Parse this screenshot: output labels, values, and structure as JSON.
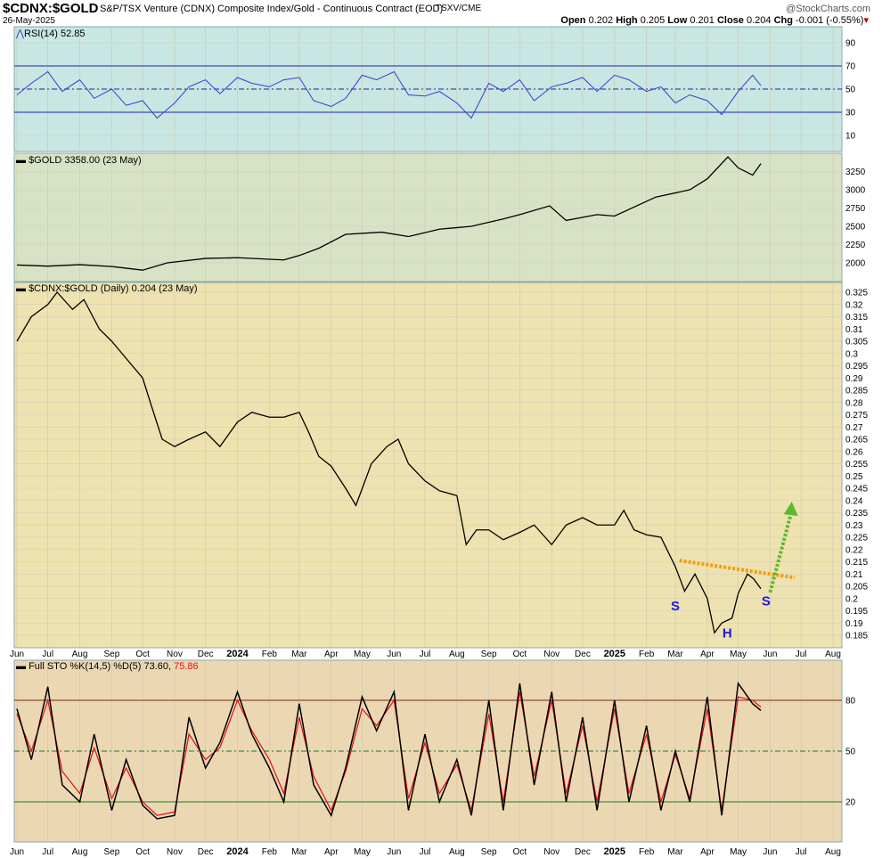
{
  "header": {
    "symbol": "$CDNX:$GOLD",
    "description": "S&P/TSX Venture (CDNX) Composite Index/Gold - Continuous Contract (EOD)",
    "exchange": "TSXV/CME",
    "date": "26-May-2025",
    "watermark": "@StockCharts.com",
    "ohlc": [
      {
        "k": "Open",
        "v": "0.202"
      },
      {
        "k": "High",
        "v": "0.205"
      },
      {
        "k": "Low",
        "v": "0.201"
      },
      {
        "k": "Close",
        "v": "0.204"
      },
      {
        "k": "Chg",
        "v": "-0.001 (-0.55%)"
      }
    ]
  },
  "x_ticks": [
    "Jun",
    "Jul",
    "Aug",
    "Sep",
    "Oct",
    "Nov",
    "Dec",
    "2024",
    "Feb",
    "Mar",
    "Apr",
    "May",
    "Jun",
    "Jul",
    "Aug",
    "Sep",
    "Oct",
    "Nov",
    "Dec",
    "2025",
    "Feb",
    "Mar",
    "Apr",
    "May",
    "Jun",
    "Jul",
    "Aug"
  ],
  "x_tick_dates": [
    "2023-06-01",
    "2023-07-01",
    "2023-08-01",
    "2023-09-01",
    "2023-10-01",
    "2023-11-01",
    "2023-12-01",
    "2024-01-01",
    "2024-02-01",
    "2024-03-01",
    "2024-04-01",
    "2024-05-01",
    "2024-06-01",
    "2024-07-01",
    "2024-08-01",
    "2024-09-01",
    "2024-10-01",
    "2024-11-01",
    "2024-12-01",
    "2025-01-01",
    "2025-02-01",
    "2025-03-01",
    "2025-04-01",
    "2025-05-01",
    "2025-06-01",
    "2025-07-01",
    "2025-08-01"
  ],
  "colors": {
    "rsi_bg": "#c8e6e2",
    "gold_bg": "#d8e3c6",
    "main_bg": "#eee2b0",
    "sto_bg": "#ecd7b3",
    "rsi_line": "#3b3bd0",
    "sto_k": "#000000",
    "sto_d": "#e01010",
    "trendline": "#f39c12",
    "arrow": "#5cb82e",
    "label": "#1a1ae0"
  },
  "chart_data": [
    {
      "type": "line",
      "legend": "RSI(14) 52.85",
      "yticks": [
        90,
        70,
        50,
        30,
        10
      ],
      "ylim": [
        0,
        100
      ],
      "overbought": 70,
      "oversold": 30,
      "x": [
        "2023-06-01",
        "2023-06-15",
        "2023-07-01",
        "2023-07-15",
        "2023-08-01",
        "2023-08-15",
        "2023-09-01",
        "2023-09-15",
        "2023-10-01",
        "2023-10-15",
        "2023-11-01",
        "2023-11-15",
        "2023-12-01",
        "2023-12-15",
        "2024-01-01",
        "2024-01-15",
        "2024-02-01",
        "2024-02-15",
        "2024-03-01",
        "2024-03-15",
        "2024-04-01",
        "2024-04-15",
        "2024-05-01",
        "2024-05-15",
        "2024-06-01",
        "2024-06-15",
        "2024-07-01",
        "2024-07-15",
        "2024-08-01",
        "2024-08-15",
        "2024-09-01",
        "2024-09-15",
        "2024-10-01",
        "2024-10-15",
        "2024-11-01",
        "2024-11-15",
        "2024-12-01",
        "2024-12-15",
        "2025-01-01",
        "2025-01-15",
        "2025-02-01",
        "2025-02-15",
        "2025-03-01",
        "2025-03-15",
        "2025-04-01",
        "2025-04-15",
        "2025-05-01",
        "2025-05-15",
        "2025-05-23"
      ],
      "values": [
        45,
        55,
        65,
        48,
        58,
        42,
        50,
        36,
        40,
        25,
        38,
        52,
        58,
        46,
        60,
        55,
        52,
        58,
        60,
        40,
        35,
        42,
        62,
        58,
        65,
        45,
        44,
        48,
        38,
        25,
        55,
        48,
        58,
        40,
        52,
        55,
        60,
        48,
        62,
        58,
        48,
        52,
        38,
        45,
        40,
        28,
        48,
        62,
        53
      ]
    },
    {
      "type": "line",
      "legend": "$GOLD 3358.00 (23 May)",
      "yticks": [
        3250,
        3000,
        2750,
        2500,
        2250,
        2000
      ],
      "x": [
        "2023-06-01",
        "2023-07-01",
        "2023-08-01",
        "2023-09-01",
        "2023-10-01",
        "2023-10-25",
        "2023-12-01",
        "2024-01-01",
        "2024-02-15",
        "2024-03-01",
        "2024-03-20",
        "2024-04-15",
        "2024-05-20",
        "2024-06-15",
        "2024-07-15",
        "2024-08-15",
        "2024-09-15",
        "2024-10-01",
        "2024-10-30",
        "2024-11-15",
        "2024-12-15",
        "2025-01-01",
        "2025-02-10",
        "2025-03-15",
        "2025-04-01",
        "2025-04-21",
        "2025-05-01",
        "2025-05-15",
        "2025-05-23"
      ],
      "values": [
        1970,
        1955,
        1975,
        1950,
        1900,
        2000,
        2060,
        2070,
        2040,
        2100,
        2200,
        2390,
        2420,
        2360,
        2460,
        2500,
        2600,
        2660,
        2780,
        2580,
        2660,
        2640,
        2900,
        3000,
        3150,
        3450,
        3300,
        3200,
        3358
      ]
    },
    {
      "type": "line",
      "legend": "$CDNX:$GOLD (Daily) 0.204 (23 May)",
      "yticks": [
        0.325,
        0.32,
        0.315,
        0.31,
        0.305,
        0.3,
        0.295,
        0.29,
        0.285,
        0.28,
        0.275,
        0.27,
        0.265,
        0.26,
        0.255,
        0.25,
        0.245,
        0.24,
        0.235,
        0.23,
        0.225,
        0.22,
        0.215,
        0.21,
        0.205,
        0.2,
        0.195,
        0.19,
        0.185
      ],
      "x": [
        "2023-06-01",
        "2023-06-15",
        "2023-07-01",
        "2023-07-10",
        "2023-07-25",
        "2023-08-05",
        "2023-08-20",
        "2023-09-01",
        "2023-09-15",
        "2023-10-01",
        "2023-10-10",
        "2023-10-20",
        "2023-11-01",
        "2023-11-15",
        "2023-12-01",
        "2023-12-15",
        "2024-01-01",
        "2024-01-15",
        "2024-02-01",
        "2024-02-15",
        "2024-03-01",
        "2024-03-10",
        "2024-03-20",
        "2024-04-01",
        "2024-04-15",
        "2024-04-25",
        "2024-05-10",
        "2024-05-25",
        "2024-06-05",
        "2024-06-15",
        "2024-07-01",
        "2024-07-15",
        "2024-08-01",
        "2024-08-10",
        "2024-08-20",
        "2024-09-01",
        "2024-09-15",
        "2024-10-01",
        "2024-10-15",
        "2024-11-01",
        "2024-11-15",
        "2024-12-01",
        "2024-12-15",
        "2025-01-01",
        "2025-01-10",
        "2025-01-20",
        "2025-02-01",
        "2025-02-15",
        "2025-03-01",
        "2025-03-10",
        "2025-03-20",
        "2025-04-01",
        "2025-04-08",
        "2025-04-15",
        "2025-04-25",
        "2025-05-01",
        "2025-05-10",
        "2025-05-16",
        "2025-05-23"
      ],
      "values": [
        0.305,
        0.315,
        0.32,
        0.325,
        0.318,
        0.322,
        0.31,
        0.305,
        0.298,
        0.29,
        0.278,
        0.265,
        0.262,
        0.265,
        0.268,
        0.262,
        0.272,
        0.276,
        0.274,
        0.274,
        0.276,
        0.268,
        0.258,
        0.254,
        0.245,
        0.238,
        0.255,
        0.262,
        0.265,
        0.255,
        0.248,
        0.244,
        0.242,
        0.222,
        0.228,
        0.228,
        0.224,
        0.227,
        0.23,
        0.222,
        0.23,
        0.233,
        0.23,
        0.23,
        0.236,
        0.228,
        0.226,
        0.225,
        0.213,
        0.203,
        0.21,
        0.2,
        0.186,
        0.19,
        0.192,
        0.202,
        0.21,
        0.208,
        0.204
      ],
      "annotations": [
        {
          "text": "S",
          "x": "2025-03-01",
          "y": 0.197
        },
        {
          "text": "H",
          "x": "2025-04-20",
          "y": 0.186
        },
        {
          "text": "S",
          "x": "2025-05-28",
          "y": 0.199
        }
      ],
      "trendline": {
        "from": [
          "2025-03-05",
          0.2155
        ],
        "to": [
          "2025-06-25",
          0.2085
        ]
      },
      "arrow": {
        "from": [
          "2025-06-01",
          0.2025
        ],
        "to": [
          "2025-06-22",
          0.2395
        ]
      }
    },
    {
      "type": "line",
      "legend": "Full STO %K(14,5) %D(5) 73.60,",
      "legend_d": "75.86",
      "yticks": [
        80,
        50,
        20
      ],
      "x": [
        "2023-06-01",
        "2023-06-15",
        "2023-07-01",
        "2023-07-15",
        "2023-08-01",
        "2023-08-15",
        "2023-09-01",
        "2023-09-15",
        "2023-10-01",
        "2023-10-15",
        "2023-11-01",
        "2023-11-15",
        "2023-12-01",
        "2023-12-15",
        "2024-01-01",
        "2024-01-15",
        "2024-02-01",
        "2024-02-15",
        "2024-03-01",
        "2024-03-15",
        "2024-04-01",
        "2024-04-15",
        "2024-05-01",
        "2024-05-15",
        "2024-06-01",
        "2024-06-15",
        "2024-07-01",
        "2024-07-15",
        "2024-08-01",
        "2024-08-15",
        "2024-09-01",
        "2024-09-15",
        "2024-10-01",
        "2024-10-15",
        "2024-11-01",
        "2024-11-15",
        "2024-12-01",
        "2024-12-15",
        "2025-01-01",
        "2025-01-15",
        "2025-02-01",
        "2025-02-15",
        "2025-03-01",
        "2025-03-15",
        "2025-04-01",
        "2025-04-15",
        "2025-05-01",
        "2025-05-15",
        "2025-05-23"
      ],
      "k": [
        75,
        45,
        88,
        30,
        20,
        60,
        15,
        45,
        18,
        10,
        12,
        70,
        40,
        55,
        85,
        60,
        40,
        20,
        78,
        30,
        12,
        40,
        82,
        62,
        85,
        15,
        60,
        20,
        45,
        12,
        80,
        15,
        90,
        30,
        85,
        20,
        70,
        15,
        80,
        20,
        65,
        15,
        50,
        20,
        82,
        12,
        90,
        78,
        74
      ],
      "d": [
        72,
        50,
        80,
        38,
        25,
        52,
        22,
        40,
        20,
        12,
        14,
        60,
        45,
        52,
        80,
        62,
        45,
        25,
        70,
        35,
        15,
        38,
        75,
        65,
        80,
        22,
        55,
        25,
        42,
        15,
        72,
        20,
        85,
        35,
        80,
        25,
        65,
        20,
        75,
        25,
        60,
        20,
        48,
        22,
        75,
        15,
        82,
        80,
        76
      ]
    }
  ]
}
